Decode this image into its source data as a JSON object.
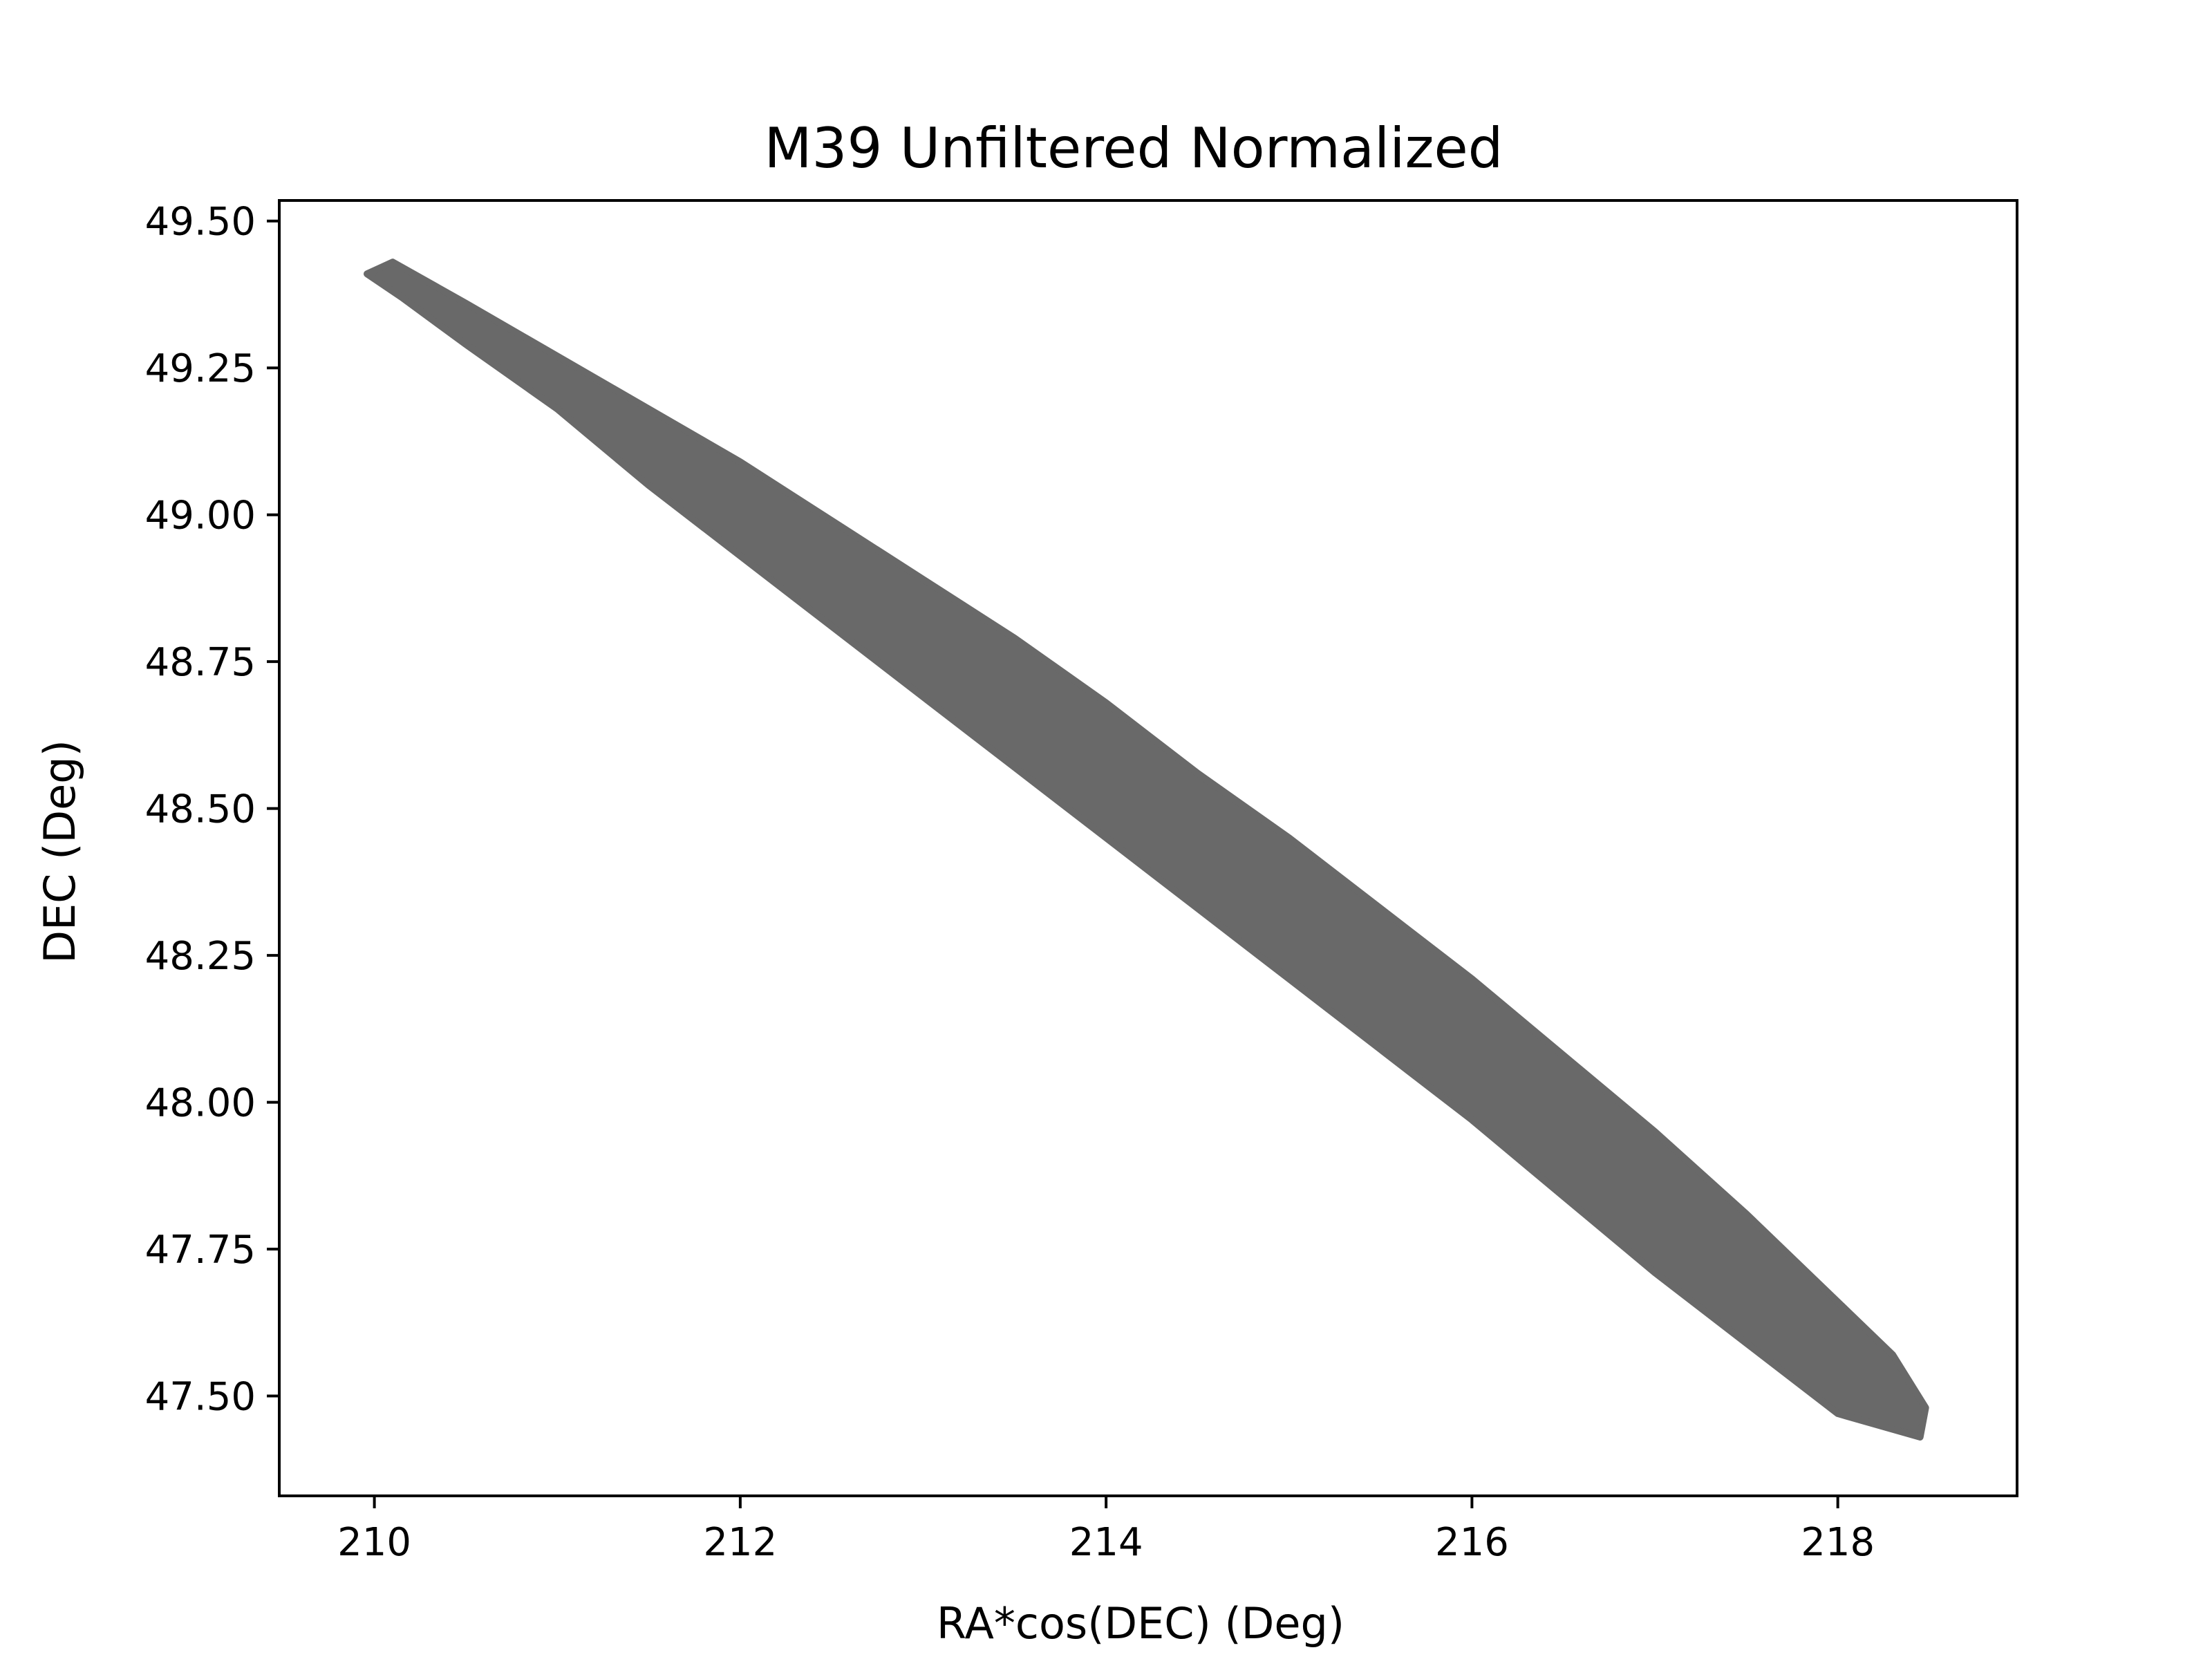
{
  "chart_data": {
    "type": "scatter",
    "title": "M39 Unfiltered Normalized",
    "xlabel": "RA*cos(DEC) (Deg)",
    "ylabel": "DEC (Deg)",
    "xlim": [
      209.48,
      218.98
    ],
    "ylim": [
      47.33,
      49.535
    ],
    "xticks": [
      210,
      212,
      214,
      216,
      218
    ],
    "xtick_labels": [
      "210",
      "212",
      "214",
      "216",
      "218"
    ],
    "yticks": [
      47.5,
      47.75,
      48.0,
      48.25,
      48.5,
      48.75,
      49.0,
      49.25,
      49.5
    ],
    "ytick_labels": [
      "47.50",
      "47.75",
      "48.00",
      "48.25",
      "48.50",
      "48.75",
      "49.00",
      "49.25",
      "49.50"
    ],
    "grid": false,
    "series": [
      {
        "marker_color": "#696969",
        "region_outline": {
          "upper_edge": [
            [
              209.96,
              49.41
            ],
            [
              210.1,
              49.43
            ],
            [
              210.5,
              49.36
            ],
            [
              211.0,
              49.27
            ],
            [
              211.5,
              49.18
            ],
            [
              212.0,
              49.09
            ],
            [
              212.5,
              48.99
            ],
            [
              213.0,
              48.89
            ],
            [
              213.5,
              48.79
            ],
            [
              214.0,
              48.68
            ],
            [
              214.5,
              48.56
            ],
            [
              215.0,
              48.45
            ],
            [
              215.5,
              48.33
            ],
            [
              216.0,
              48.21
            ],
            [
              216.5,
              48.08
            ],
            [
              217.0,
              47.95
            ],
            [
              217.5,
              47.81
            ],
            [
              218.0,
              47.66
            ],
            [
              218.3,
              47.57
            ],
            [
              218.48,
              47.48
            ]
          ],
          "lower_edge": [
            [
              218.48,
              47.48
            ],
            [
              218.45,
              47.43
            ],
            [
              218.0,
              47.47
            ],
            [
              217.5,
              47.59
            ],
            [
              217.0,
              47.71
            ],
            [
              216.5,
              47.84
            ],
            [
              216.0,
              47.97
            ],
            [
              215.5,
              48.09
            ],
            [
              215.0,
              48.21
            ],
            [
              214.5,
              48.33
            ],
            [
              214.0,
              48.45
            ],
            [
              213.5,
              48.57
            ],
            [
              213.0,
              48.69
            ],
            [
              212.5,
              48.81
            ],
            [
              212.0,
              48.93
            ],
            [
              211.5,
              49.05
            ],
            [
              211.0,
              49.18
            ],
            [
              210.5,
              49.29
            ],
            [
              210.15,
              49.37
            ],
            [
              209.96,
              49.41
            ]
          ]
        }
      }
    ]
  }
}
